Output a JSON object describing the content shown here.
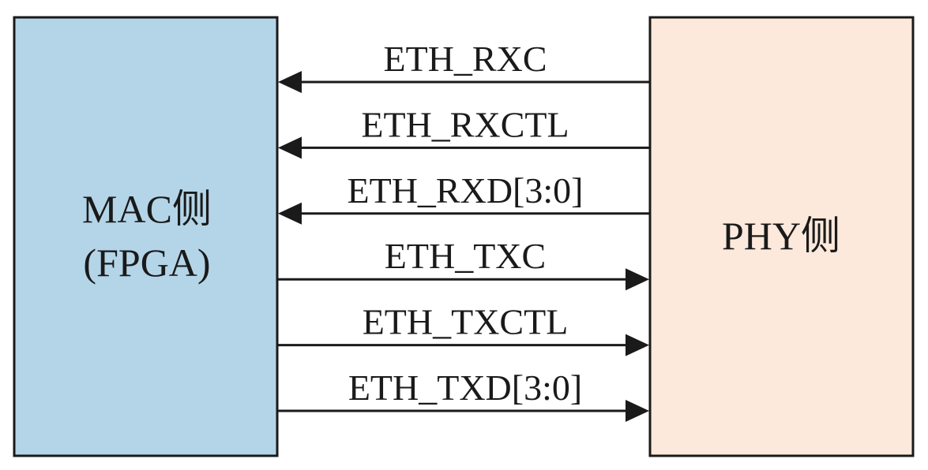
{
  "mac_block": {
    "line1": "MAC侧",
    "line2": "(FPGA)"
  },
  "phy_block": {
    "label": "PHY侧"
  },
  "signals": [
    {
      "label": "ETH_RXC",
      "direction": "to-mac"
    },
    {
      "label": "ETH_RXCTL",
      "direction": "to-mac"
    },
    {
      "label": "ETH_RXD[3:0]",
      "direction": "to-mac"
    },
    {
      "label": "ETH_TXC",
      "direction": "to-phy"
    },
    {
      "label": "ETH_TXCTL",
      "direction": "to-phy"
    },
    {
      "label": "ETH_TXD[3:0]",
      "direction": "to-phy"
    }
  ],
  "colors": {
    "mac_fill": "#b4d5e8",
    "phy_fill": "#fce9db",
    "stroke": "#1a1a1a"
  }
}
